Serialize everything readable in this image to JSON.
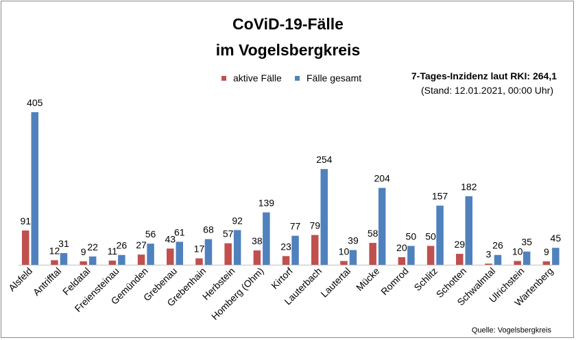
{
  "chart_data": {
    "type": "bar",
    "title": "CoViD-19-Fälle",
    "subtitle": "im Vogelsbergkreis",
    "note_strong": "7-Tages-Inzidenz laut RKI: 264,1",
    "note": "(Stand: 12.01.2021, 00:00 Uhr)",
    "source": "Quelle: Vogelsbergkreis",
    "categories": [
      "Alsfeld",
      "Antrifftal",
      "Feldatal",
      "Freiensteinau",
      "Gemünden",
      "Grebenau",
      "Grebenhain",
      "Herbstein",
      "Homberg (Ohm)",
      "Kirtorf",
      "Lauterbach",
      "Lautertal",
      "Mücke",
      "Romrod",
      "Schlitz",
      "Schotten",
      "Schwalmtal",
      "Ulrichstein",
      "Wartenberg"
    ],
    "series": [
      {
        "name": "aktive Fälle",
        "color": "#c0504d",
        "values": [
          91,
          12,
          9,
          11,
          27,
          43,
          17,
          57,
          38,
          23,
          79,
          10,
          58,
          20,
          50,
          29,
          3,
          10,
          9
        ]
      },
      {
        "name": "Fälle gesamt",
        "color": "#4f81bd",
        "values": [
          405,
          31,
          22,
          26,
          56,
          61,
          68,
          92,
          139,
          77,
          254,
          39,
          204,
          50,
          157,
          182,
          26,
          35,
          45
        ]
      }
    ],
    "ylim": [
      0,
      405
    ],
    "grid": false,
    "legend_position": "top"
  }
}
